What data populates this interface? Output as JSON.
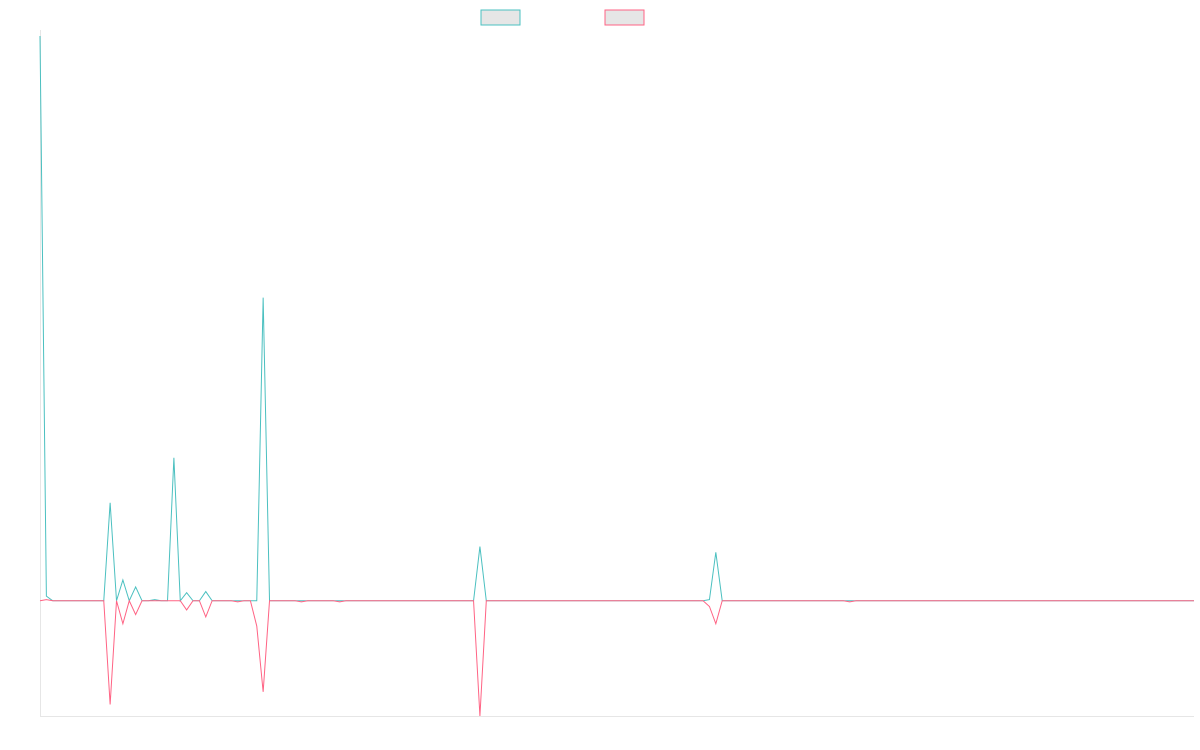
{
  "chart_data": {
    "type": "line",
    "title": "",
    "xlabel": "",
    "ylabel": "",
    "grid": false,
    "legend_position": "top-center",
    "x_range": [
      0,
      88
    ],
    "ylim": [
      -100,
      490
    ],
    "series": [
      {
        "color": "#4bc0c0",
        "legend_fill": "#e6e6e6",
        "values": [
          490,
          4,
          0,
          0,
          0,
          0,
          0,
          0,
          0,
          0,
          0,
          85,
          0,
          18,
          0,
          12,
          0,
          0,
          1,
          0,
          0,
          124,
          0,
          7,
          0,
          0,
          8,
          0,
          0,
          0,
          0,
          0,
          0,
          0,
          0,
          263,
          0,
          0,
          0,
          0,
          0,
          0,
          0,
          0,
          0,
          0,
          0,
          0,
          0,
          0,
          0,
          0,
          0,
          0,
          0,
          0,
          0,
          0,
          0,
          0,
          0,
          0,
          0,
          0,
          0,
          0,
          0,
          0,
          0,
          47,
          0,
          0,
          0,
          0,
          0,
          0,
          0,
          0,
          0,
          0,
          0,
          0,
          0,
          0,
          0,
          0,
          0,
          0,
          0,
          0,
          0,
          0,
          0,
          0,
          0,
          0,
          0,
          0,
          0,
          0,
          0,
          0,
          0,
          0,
          0,
          1,
          42,
          0,
          0,
          0,
          0,
          0,
          0,
          0,
          0,
          0,
          0,
          0,
          0,
          0,
          0,
          0,
          0,
          0,
          0,
          0,
          0,
          0,
          0,
          0,
          0,
          0,
          0,
          0,
          0,
          0,
          0,
          0,
          0,
          0,
          0,
          0,
          0,
          0,
          0,
          0,
          0,
          0,
          0,
          0,
          0,
          0,
          0,
          0,
          0,
          0,
          0,
          0,
          0,
          0,
          0,
          0,
          0,
          0,
          0,
          0,
          0,
          0,
          0,
          0,
          0,
          0,
          0,
          0,
          0,
          0,
          0,
          0,
          0,
          0,
          0,
          0
        ]
      },
      {
        "color": "#ff6384",
        "legend_fill": "#e6e6e6",
        "values": [
          0,
          1,
          0,
          0,
          0,
          0,
          0,
          0,
          0,
          0,
          0,
          -90,
          0,
          -20,
          0,
          -12,
          0,
          0,
          0,
          0,
          0,
          0,
          0,
          -8,
          0,
          0,
          -14,
          0,
          0,
          0,
          0,
          -1,
          0,
          0,
          -22,
          -79,
          0,
          0,
          0,
          0,
          0,
          -1,
          0,
          0,
          0,
          0,
          0,
          -1,
          0,
          0,
          0,
          0,
          0,
          0,
          0,
          0,
          0,
          0,
          0,
          0,
          0,
          0,
          0,
          0,
          0,
          0,
          0,
          0,
          0,
          -100,
          0,
          0,
          0,
          0,
          0,
          0,
          0,
          0,
          0,
          0,
          0,
          0,
          0,
          0,
          0,
          0,
          0,
          0,
          0,
          0,
          0,
          0,
          0,
          0,
          0,
          0,
          0,
          0,
          0,
          0,
          0,
          0,
          0,
          0,
          0,
          -5,
          -20,
          0,
          0,
          0,
          0,
          0,
          0,
          0,
          0,
          0,
          0,
          0,
          0,
          0,
          0,
          0,
          0,
          0,
          0,
          0,
          0,
          -1,
          0,
          0,
          0,
          0,
          0,
          0,
          0,
          0,
          0,
          0,
          0,
          0,
          0,
          0,
          0,
          0,
          0,
          0,
          0,
          0,
          0,
          0,
          0,
          0,
          0,
          0,
          0,
          0,
          0,
          0,
          0,
          0,
          0,
          0,
          0,
          0,
          0,
          0,
          0,
          0,
          0,
          0,
          0,
          0,
          0,
          0,
          0,
          0,
          0,
          0,
          0,
          0,
          0,
          0
        ]
      }
    ]
  }
}
